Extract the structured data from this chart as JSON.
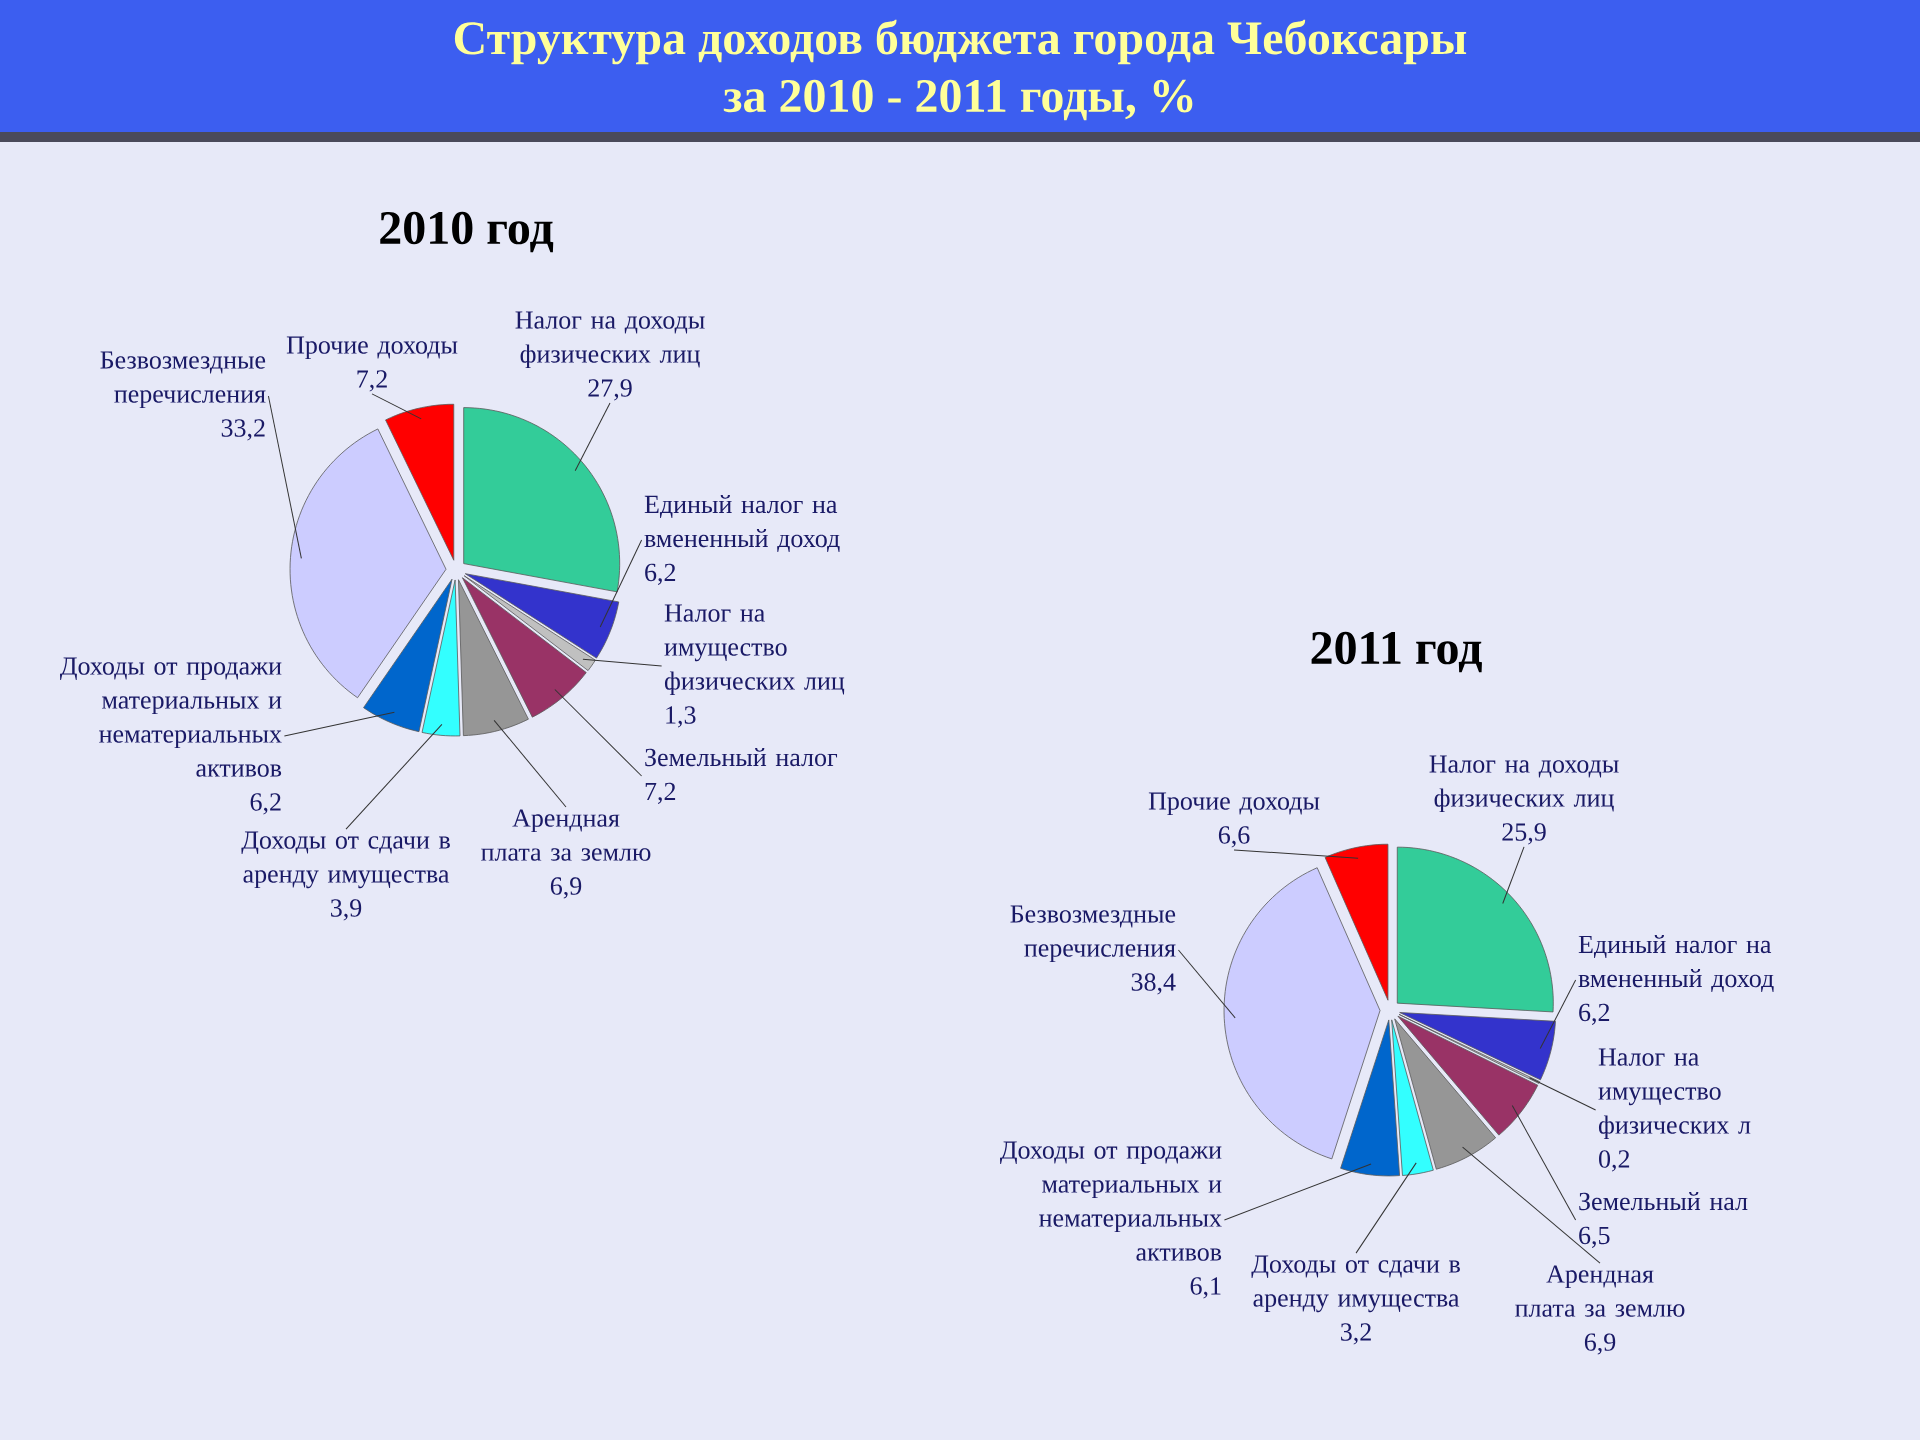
{
  "chart_data": [
    {
      "type": "other",
      "title": "Структура доходов бюджета города Чебоксары",
      "subtitle": "за 2010 - 2011 годы, %"
    },
    {
      "type": "pie",
      "title": "2010 год",
      "categories": [
        "Налог на доходы физических лиц",
        "Единый налог на вмененный доход",
        "Налог на имущество физических лиц",
        "Земельный налог",
        "Арендная плата за землю",
        "Доходы от сдачи в аренду имущества",
        "Доходы от продажи материальных и нематериальных активов",
        "Безвозмездные перечисления",
        "Прочие доходы"
      ],
      "values": [
        27.9,
        6.2,
        1.3,
        7.2,
        6.9,
        3.9,
        6.2,
        33.2,
        7.2
      ],
      "value_labels": [
        "27,9",
        "6,2",
        "1,3",
        "7,2",
        "6,9",
        "3,9",
        "6,2",
        "33,2",
        "7,2"
      ],
      "colors": [
        "#33cc99",
        "#3333cc",
        "#c0c0c0",
        "#993366",
        "#969696",
        "#33ffff",
        "#0066cc",
        "#ccccff",
        "#ff0000"
      ]
    },
    {
      "type": "pie",
      "title": "2011 год",
      "categories": [
        "Налог на доходы физических лиц",
        "Единый налог на вмененный доход",
        "Налог на имущество физических л",
        "Земельный нал",
        "Арендная плата за землю",
        "Доходы от сдачи в аренду имущества",
        "Доходы от продажи материальных и нематериальных активов",
        "Безвозмездные перечисления",
        "Прочие доходы"
      ],
      "values": [
        25.9,
        6.2,
        0.2,
        6.5,
        6.9,
        3.2,
        6.1,
        38.4,
        6.6
      ],
      "value_labels": [
        "25,9",
        "6,2",
        "0,2",
        "6,5",
        "6,9",
        "3,2",
        "6,1",
        "38,4",
        "6,6"
      ],
      "colors": [
        "#33cc99",
        "#3333cc",
        "#c0c0c0",
        "#993366",
        "#969696",
        "#33ffff",
        "#0066cc",
        "#ccccff",
        "#ff0000"
      ]
    }
  ]
}
